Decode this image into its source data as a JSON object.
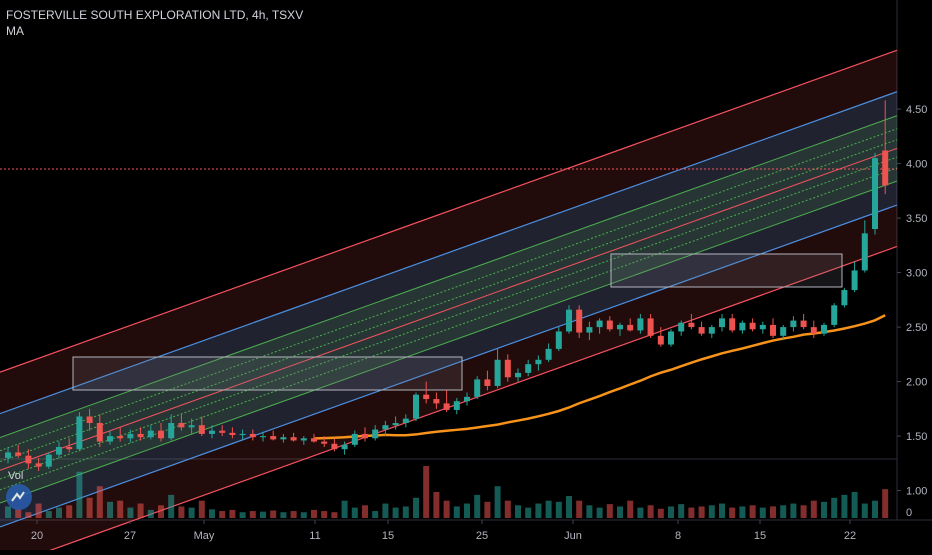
{
  "header": {
    "title": "FOSTERVILLE SOUTH EXPLORATION LTD, 4h, TSXV",
    "indicator": "MA"
  },
  "volume_label": "Vol",
  "chart_data": {
    "type": "candlestick",
    "title": "FOSTERVILLE SOUTH EXPLORATION LTD, 4h, TSXV",
    "price_axis": {
      "ticks": [
        "4.50",
        "4.00",
        "3.50",
        "3.00",
        "2.50",
        "2.00",
        "1.50",
        "1.00"
      ],
      "range": [
        0.7,
        4.8
      ]
    },
    "volume_axis": {
      "ticks": [
        "0"
      ]
    },
    "time_axis": {
      "ticks": [
        "20",
        "27",
        "May",
        "11",
        "15",
        "25",
        "Jun",
        "8",
        "15",
        "22"
      ]
    },
    "horizontal_line": {
      "value": 3.95,
      "color": "#f7525f"
    },
    "colors": {
      "up": "#26a69a",
      "down": "#ef5350",
      "ma": "#f7931a",
      "channel_outer": "#f7525f",
      "channel_inner": "#4a90e2",
      "channel_mid": "#4caf50"
    },
    "candles": [
      [
        1.3,
        1.4,
        1.25,
        1.35
      ],
      [
        1.35,
        1.42,
        1.3,
        1.32
      ],
      [
        1.32,
        1.38,
        1.2,
        1.25
      ],
      [
        1.25,
        1.3,
        1.18,
        1.22
      ],
      [
        1.22,
        1.35,
        1.2,
        1.33
      ],
      [
        1.33,
        1.45,
        1.3,
        1.4
      ],
      [
        1.4,
        1.48,
        1.35,
        1.38
      ],
      [
        1.38,
        1.72,
        1.36,
        1.68
      ],
      [
        1.68,
        1.75,
        1.55,
        1.62
      ],
      [
        1.62,
        1.7,
        1.4,
        1.45
      ],
      [
        1.45,
        1.55,
        1.42,
        1.5
      ],
      [
        1.5,
        1.58,
        1.45,
        1.48
      ],
      [
        1.48,
        1.56,
        1.44,
        1.52
      ],
      [
        1.52,
        1.58,
        1.46,
        1.49
      ],
      [
        1.49,
        1.6,
        1.47,
        1.55
      ],
      [
        1.55,
        1.62,
        1.45,
        1.48
      ],
      [
        1.48,
        1.7,
        1.46,
        1.62
      ],
      [
        1.62,
        1.7,
        1.55,
        1.58
      ],
      [
        1.58,
        1.66,
        1.52,
        1.6
      ],
      [
        1.6,
        1.68,
        1.5,
        1.52
      ],
      [
        1.52,
        1.6,
        1.48,
        1.55
      ],
      [
        1.55,
        1.6,
        1.5,
        1.53
      ],
      [
        1.53,
        1.58,
        1.48,
        1.51
      ],
      [
        1.51,
        1.56,
        1.47,
        1.52
      ],
      [
        1.52,
        1.56,
        1.46,
        1.49
      ],
      [
        1.49,
        1.54,
        1.45,
        1.5
      ],
      [
        1.5,
        1.55,
        1.46,
        1.47
      ],
      [
        1.47,
        1.52,
        1.44,
        1.49
      ],
      [
        1.49,
        1.53,
        1.45,
        1.46
      ],
      [
        1.46,
        1.5,
        1.42,
        1.48
      ],
      [
        1.48,
        1.52,
        1.44,
        1.45
      ],
      [
        1.45,
        1.5,
        1.4,
        1.43
      ],
      [
        1.43,
        1.48,
        1.36,
        1.38
      ],
      [
        1.38,
        1.45,
        1.33,
        1.42
      ],
      [
        1.42,
        1.55,
        1.4,
        1.52
      ],
      [
        1.52,
        1.58,
        1.45,
        1.48
      ],
      [
        1.48,
        1.6,
        1.46,
        1.56
      ],
      [
        1.56,
        1.64,
        1.5,
        1.6
      ],
      [
        1.6,
        1.68,
        1.56,
        1.62
      ],
      [
        1.62,
        1.7,
        1.58,
        1.66
      ],
      [
        1.66,
        1.9,
        1.64,
        1.88
      ],
      [
        1.88,
        2.0,
        1.8,
        1.84
      ],
      [
        1.84,
        1.9,
        1.75,
        1.8
      ],
      [
        1.8,
        1.92,
        1.72,
        1.74
      ],
      [
        1.74,
        1.85,
        1.7,
        1.82
      ],
      [
        1.82,
        1.9,
        1.78,
        1.86
      ],
      [
        1.86,
        2.05,
        1.84,
        2.02
      ],
      [
        2.02,
        2.1,
        1.92,
        1.96
      ],
      [
        1.96,
        2.3,
        1.94,
        2.2
      ],
      [
        2.2,
        2.25,
        2.0,
        2.04
      ],
      [
        2.04,
        2.12,
        2.0,
        2.08
      ],
      [
        2.08,
        2.2,
        2.05,
        2.16
      ],
      [
        2.16,
        2.24,
        2.1,
        2.2
      ],
      [
        2.2,
        2.35,
        2.18,
        2.3
      ],
      [
        2.3,
        2.5,
        2.28,
        2.46
      ],
      [
        2.46,
        2.7,
        2.44,
        2.66
      ],
      [
        2.66,
        2.7,
        2.4,
        2.45
      ],
      [
        2.45,
        2.55,
        2.38,
        2.5
      ],
      [
        2.5,
        2.58,
        2.44,
        2.56
      ],
      [
        2.56,
        2.6,
        2.46,
        2.48
      ],
      [
        2.48,
        2.54,
        2.42,
        2.52
      ],
      [
        2.52,
        2.58,
        2.46,
        2.47
      ],
      [
        2.47,
        2.62,
        2.44,
        2.58
      ],
      [
        2.58,
        2.62,
        2.4,
        2.42
      ],
      [
        2.42,
        2.5,
        2.32,
        2.34
      ],
      [
        2.34,
        2.48,
        2.32,
        2.46
      ],
      [
        2.46,
        2.56,
        2.42,
        2.54
      ],
      [
        2.54,
        2.62,
        2.48,
        2.5
      ],
      [
        2.5,
        2.55,
        2.42,
        2.44
      ],
      [
        2.44,
        2.52,
        2.4,
        2.5
      ],
      [
        2.5,
        2.62,
        2.46,
        2.58
      ],
      [
        2.58,
        2.62,
        2.45,
        2.47
      ],
      [
        2.47,
        2.56,
        2.44,
        2.54
      ],
      [
        2.54,
        2.58,
        2.46,
        2.48
      ],
      [
        2.48,
        2.55,
        2.44,
        2.52
      ],
      [
        2.52,
        2.58,
        2.4,
        2.42
      ],
      [
        2.42,
        2.52,
        2.38,
        2.5
      ],
      [
        2.5,
        2.6,
        2.46,
        2.56
      ],
      [
        2.56,
        2.62,
        2.48,
        2.5
      ],
      [
        2.5,
        2.56,
        2.4,
        2.44
      ],
      [
        2.44,
        2.54,
        2.42,
        2.52
      ],
      [
        2.52,
        2.72,
        2.5,
        2.7
      ],
      [
        2.7,
        2.86,
        2.68,
        2.84
      ],
      [
        2.84,
        3.1,
        2.82,
        3.02
      ],
      [
        3.02,
        3.48,
        3.0,
        3.36
      ],
      [
        3.4,
        4.1,
        3.35,
        4.05
      ],
      [
        4.12,
        4.58,
        3.72,
        3.8
      ]
    ],
    "volumes": [
      20,
      15,
      10,
      25,
      12,
      18,
      22,
      80,
      35,
      55,
      28,
      30,
      18,
      25,
      14,
      22,
      40,
      20,
      18,
      30,
      15,
      12,
      14,
      10,
      12,
      11,
      13,
      10,
      12,
      10,
      14,
      12,
      10,
      30,
      18,
      22,
      12,
      25,
      18,
      20,
      35,
      90,
      45,
      30,
      20,
      25,
      40,
      28,
      55,
      30,
      22,
      18,
      25,
      30,
      28,
      38,
      30,
      22,
      18,
      24,
      20,
      30,
      18,
      22,
      16,
      20,
      24,
      18,
      20,
      22,
      25,
      18,
      20,
      22,
      18,
      20,
      22,
      25,
      22,
      30,
      28,
      35,
      40,
      45,
      25,
      30,
      50
    ]
  }
}
